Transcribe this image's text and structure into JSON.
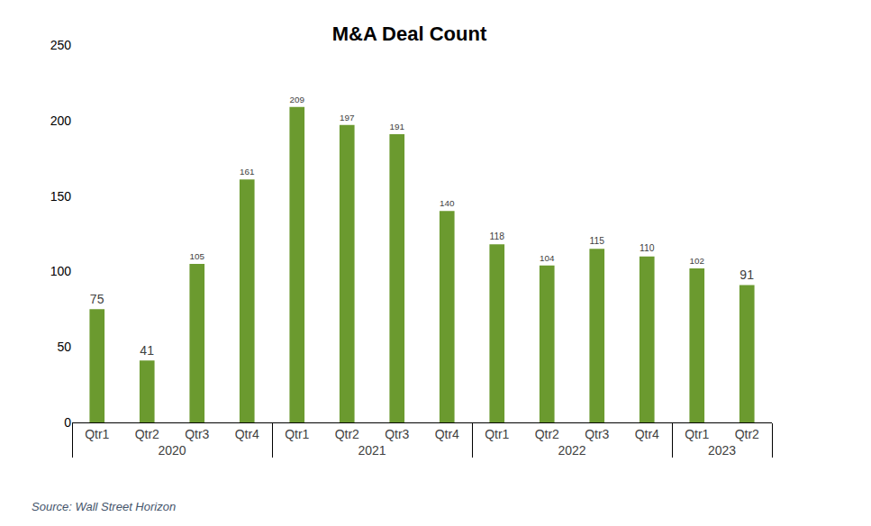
{
  "chart_data": {
    "type": "bar",
    "title": "M&A Deal Count",
    "source": "Source: Wall Street Horizon",
    "categories": [
      [
        "2020",
        "Qtr1"
      ],
      [
        "2020",
        "Qtr2"
      ],
      [
        "2020",
        "Qtr3"
      ],
      [
        "2020",
        "Qtr4"
      ],
      [
        "2021",
        "Qtr1"
      ],
      [
        "2021",
        "Qtr2"
      ],
      [
        "2021",
        "Qtr3"
      ],
      [
        "2021",
        "Qtr4"
      ],
      [
        "2022",
        "Qtr1"
      ],
      [
        "2022",
        "Qtr2"
      ],
      [
        "2022",
        "Qtr3"
      ],
      [
        "2022",
        "Qtr4"
      ],
      [
        "2023",
        "Qtr1"
      ],
      [
        "2023",
        "Qtr2"
      ]
    ],
    "values": [
      75,
      41,
      105,
      161,
      209,
      197,
      191,
      140,
      118,
      104,
      115,
      110,
      102,
      91
    ],
    "color": "#6b9a2f",
    "ylim": [
      0,
      250
    ],
    "yticks": [
      0,
      50,
      100,
      150,
      200,
      250
    ],
    "grid": false,
    "data_labels": true
  }
}
